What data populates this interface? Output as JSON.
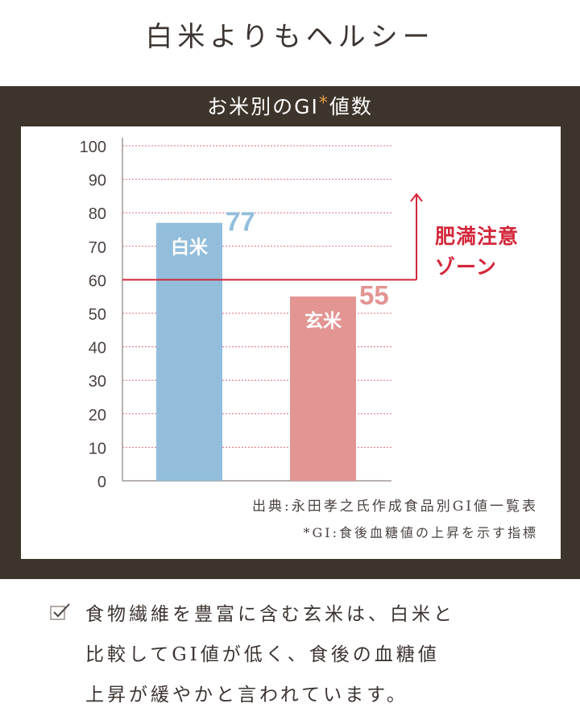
{
  "page_title": "白米よりもヘルシー",
  "chart_title": {
    "main": "お米別のGI",
    "star": "*",
    "suffix": "値数"
  },
  "chart_data": {
    "type": "bar",
    "categories": [
      "白米",
      "玄米"
    ],
    "values": [
      77,
      55
    ],
    "value_labels": [
      "77",
      "55"
    ],
    "ylim": [
      0,
      100
    ],
    "yticks": [
      "0",
      "10",
      "20",
      "30",
      "40",
      "50",
      "60",
      "70",
      "80",
      "90",
      "100"
    ],
    "grid": true,
    "threshold": {
      "value": 60,
      "label_line1": "肥満注意",
      "label_line2": "ゾーン"
    },
    "colors": {
      "白米": "#92bedc",
      "玄米": "#e29593",
      "threshold": "#d3263a",
      "grid": "#e06a7a"
    }
  },
  "source_note": "出典:永田孝之氏作成食品別GI値一覧表",
  "gi_note": "*GI:食後血糖値の上昇を示す指標",
  "bottom_lines": [
    "食物繊維を豊富に含む玄米は、白米と",
    "比較してGI値が低く、食後の血糖値",
    "上昇が緩やかと言われています。"
  ],
  "icons": {
    "check": "checkbox-check-icon"
  }
}
